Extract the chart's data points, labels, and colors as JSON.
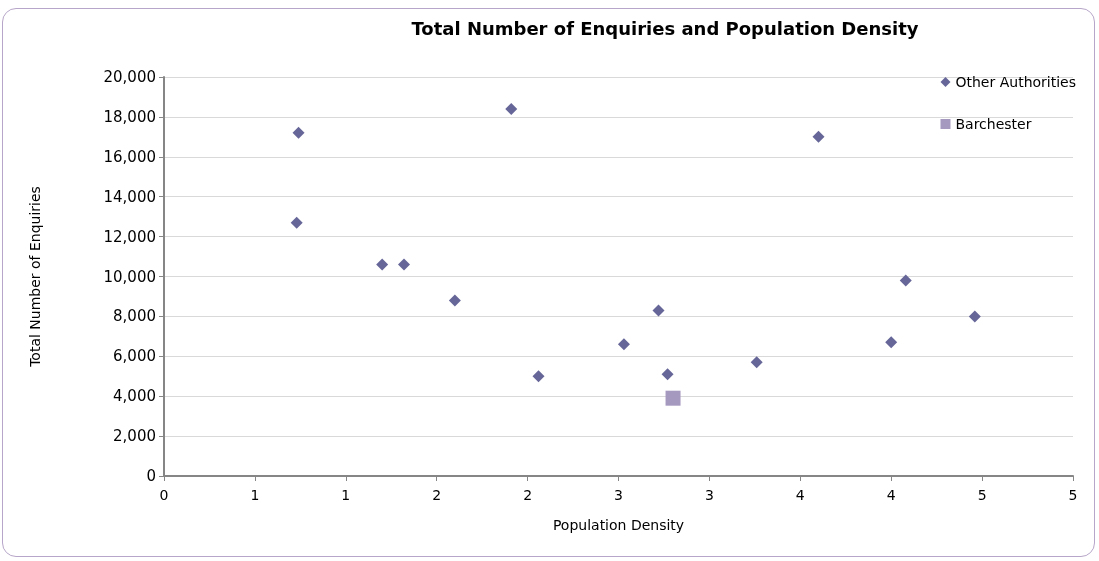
{
  "chart_data": {
    "type": "scatter",
    "title": "Total Number of Enquiries and Population Density",
    "xlabel": "Population Density",
    "ylabel": "Total Number of Enquiries",
    "series": [
      {
        "name": "Other Authorities",
        "color": "#666699",
        "marker": "diamond",
        "x": [
          0.74,
          0.73,
          1.2,
          1.32,
          1.6,
          2.06,
          1.91,
          2.53,
          2.72,
          2.77,
          3.26,
          3.6,
          4.0,
          4.08,
          4.46
        ],
        "values": [
          17200,
          12700,
          10600,
          10600,
          8800,
          5000,
          18400,
          6600,
          8300,
          5100,
          5700,
          17000,
          6700,
          9800,
          8000
        ]
      },
      {
        "name": "Barchester",
        "color": "#a699c0",
        "marker": "square",
        "x": [
          2.8
        ],
        "values": [
          3900
        ]
      }
    ],
    "xlim": [
      0,
      5
    ],
    "xticks": [
      0,
      {
        "value": 0.5,
        "label": "1"
      },
      1,
      {
        "value": 1.5,
        "label": "2"
      },
      2,
      {
        "value": 2.5,
        "label": "3"
      },
      3,
      {
        "value": 3.5,
        "label": "4"
      },
      4,
      {
        "value": 4.5,
        "label": "5"
      },
      5
    ],
    "ylim": [
      0,
      20000
    ],
    "yticks": [
      0,
      {
        "value": 2000,
        "label": "2,000"
      },
      {
        "value": 4000,
        "label": "4,000"
      },
      {
        "value": 6000,
        "label": "6,000"
      },
      {
        "value": 8000,
        "label": "8,000"
      },
      {
        "value": 10000,
        "label": "10,000"
      },
      {
        "value": 12000,
        "label": "12,000"
      },
      {
        "value": 14000,
        "label": "14,000"
      },
      {
        "value": 16000,
        "label": "16,000"
      },
      {
        "value": 18000,
        "label": "18,000"
      },
      {
        "value": 20000,
        "label": "20,000"
      }
    ],
    "grid": "y",
    "legend": "top right"
  }
}
